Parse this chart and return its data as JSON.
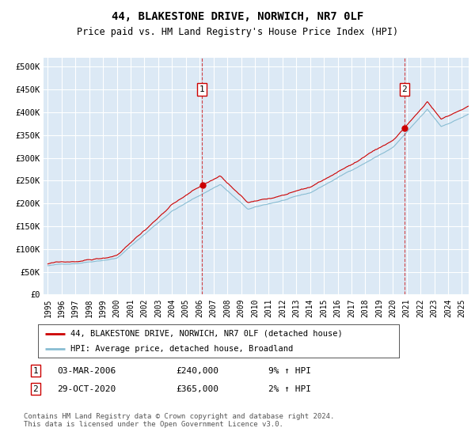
{
  "title": "44, BLAKESTONE DRIVE, NORWICH, NR7 0LF",
  "subtitle": "Price paid vs. HM Land Registry's House Price Index (HPI)",
  "legend_label_red": "44, BLAKESTONE DRIVE, NORWICH, NR7 0LF (detached house)",
  "legend_label_blue": "HPI: Average price, detached house, Broadland",
  "annotation1_date": "03-MAR-2006",
  "annotation1_price": 240000,
  "annotation1_price_str": "£240,000",
  "annotation1_hpi": "9% ↑ HPI",
  "annotation1_year": 2006.17,
  "annotation2_date": "29-OCT-2020",
  "annotation2_price": 365000,
  "annotation2_price_str": "£365,000",
  "annotation2_hpi": "2% ↑ HPI",
  "annotation2_year": 2020.83,
  "ylabel_ticks": [
    "£0",
    "£50K",
    "£100K",
    "£150K",
    "£200K",
    "£250K",
    "£300K",
    "£350K",
    "£400K",
    "£450K",
    "£500K"
  ],
  "ytick_vals": [
    0,
    50000,
    100000,
    150000,
    200000,
    250000,
    300000,
    350000,
    400000,
    450000,
    500000
  ],
  "ylim": [
    0,
    520000
  ],
  "xlim_start": 1994.7,
  "xlim_end": 2025.5,
  "plot_bg_color": "#dce9f5",
  "grid_color": "#ffffff",
  "red_color": "#cc0000",
  "blue_color": "#89bdd3",
  "footer_text": "Contains HM Land Registry data © Crown copyright and database right 2024.\nThis data is licensed under the Open Government Licence v3.0.",
  "xtick_years": [
    1995,
    1996,
    1997,
    1998,
    1999,
    2000,
    2001,
    2002,
    2003,
    2004,
    2005,
    2006,
    2007,
    2008,
    2009,
    2010,
    2011,
    2012,
    2013,
    2014,
    2015,
    2016,
    2017,
    2018,
    2019,
    2020,
    2021,
    2022,
    2023,
    2024,
    2025
  ]
}
